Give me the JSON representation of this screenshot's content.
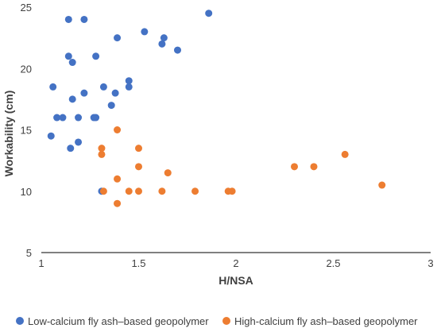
{
  "chart_data": {
    "type": "scatter",
    "title": "",
    "xlabel": "H/NSA",
    "ylabel": "Workability (cm)",
    "xlim": [
      1,
      3
    ],
    "ylim": [
      5,
      25
    ],
    "xticks": [
      1,
      1.5,
      2,
      2.5,
      3
    ],
    "yticks": [
      5,
      10,
      15,
      20,
      25
    ],
    "xtick_labels": [
      "1",
      "1.5",
      "2",
      "2.5",
      "3"
    ],
    "ytick_labels": [
      "5",
      "10",
      "15",
      "20",
      "25"
    ],
    "grid": false,
    "legend_position": "bottom",
    "series": [
      {
        "name": "Low-calcium fly ash–based geopolymer",
        "color": "#4472C4",
        "points": [
          [
            1.14,
            24.0
          ],
          [
            1.22,
            24.0
          ],
          [
            1.86,
            24.5
          ],
          [
            1.53,
            23.0
          ],
          [
            1.39,
            22.5
          ],
          [
            1.63,
            22.5
          ],
          [
            1.62,
            22.0
          ],
          [
            1.7,
            21.5
          ],
          [
            1.14,
            21.0
          ],
          [
            1.28,
            21.0
          ],
          [
            1.16,
            20.5
          ],
          [
            1.45,
            19.0
          ],
          [
            1.06,
            18.5
          ],
          [
            1.32,
            18.5
          ],
          [
            1.45,
            18.5
          ],
          [
            1.22,
            18.0
          ],
          [
            1.38,
            18.0
          ],
          [
            1.16,
            17.5
          ],
          [
            1.36,
            17.0
          ],
          [
            1.08,
            16.0
          ],
          [
            1.11,
            16.0
          ],
          [
            1.19,
            16.0
          ],
          [
            1.27,
            16.0
          ],
          [
            1.28,
            16.0
          ],
          [
            1.05,
            14.5
          ],
          [
            1.19,
            14.0
          ],
          [
            1.15,
            13.5
          ],
          [
            1.31,
            10.0
          ]
        ]
      },
      {
        "name": "High-calcium fly ash–based geopolymer",
        "color": "#ED7D31",
        "points": [
          [
            1.39,
            15.0
          ],
          [
            1.31,
            13.5
          ],
          [
            1.5,
            13.5
          ],
          [
            1.31,
            13.0
          ],
          [
            2.56,
            13.0
          ],
          [
            1.5,
            12.0
          ],
          [
            2.3,
            12.0
          ],
          [
            2.4,
            12.0
          ],
          [
            1.65,
            11.5
          ],
          [
            1.39,
            11.0
          ],
          [
            2.75,
            10.5
          ],
          [
            1.32,
            10.0
          ],
          [
            1.45,
            10.0
          ],
          [
            1.5,
            10.0
          ],
          [
            1.62,
            10.0
          ],
          [
            1.79,
            10.0
          ],
          [
            1.96,
            10.0
          ],
          [
            1.98,
            10.0
          ],
          [
            1.39,
            9.0
          ]
        ]
      }
    ]
  }
}
